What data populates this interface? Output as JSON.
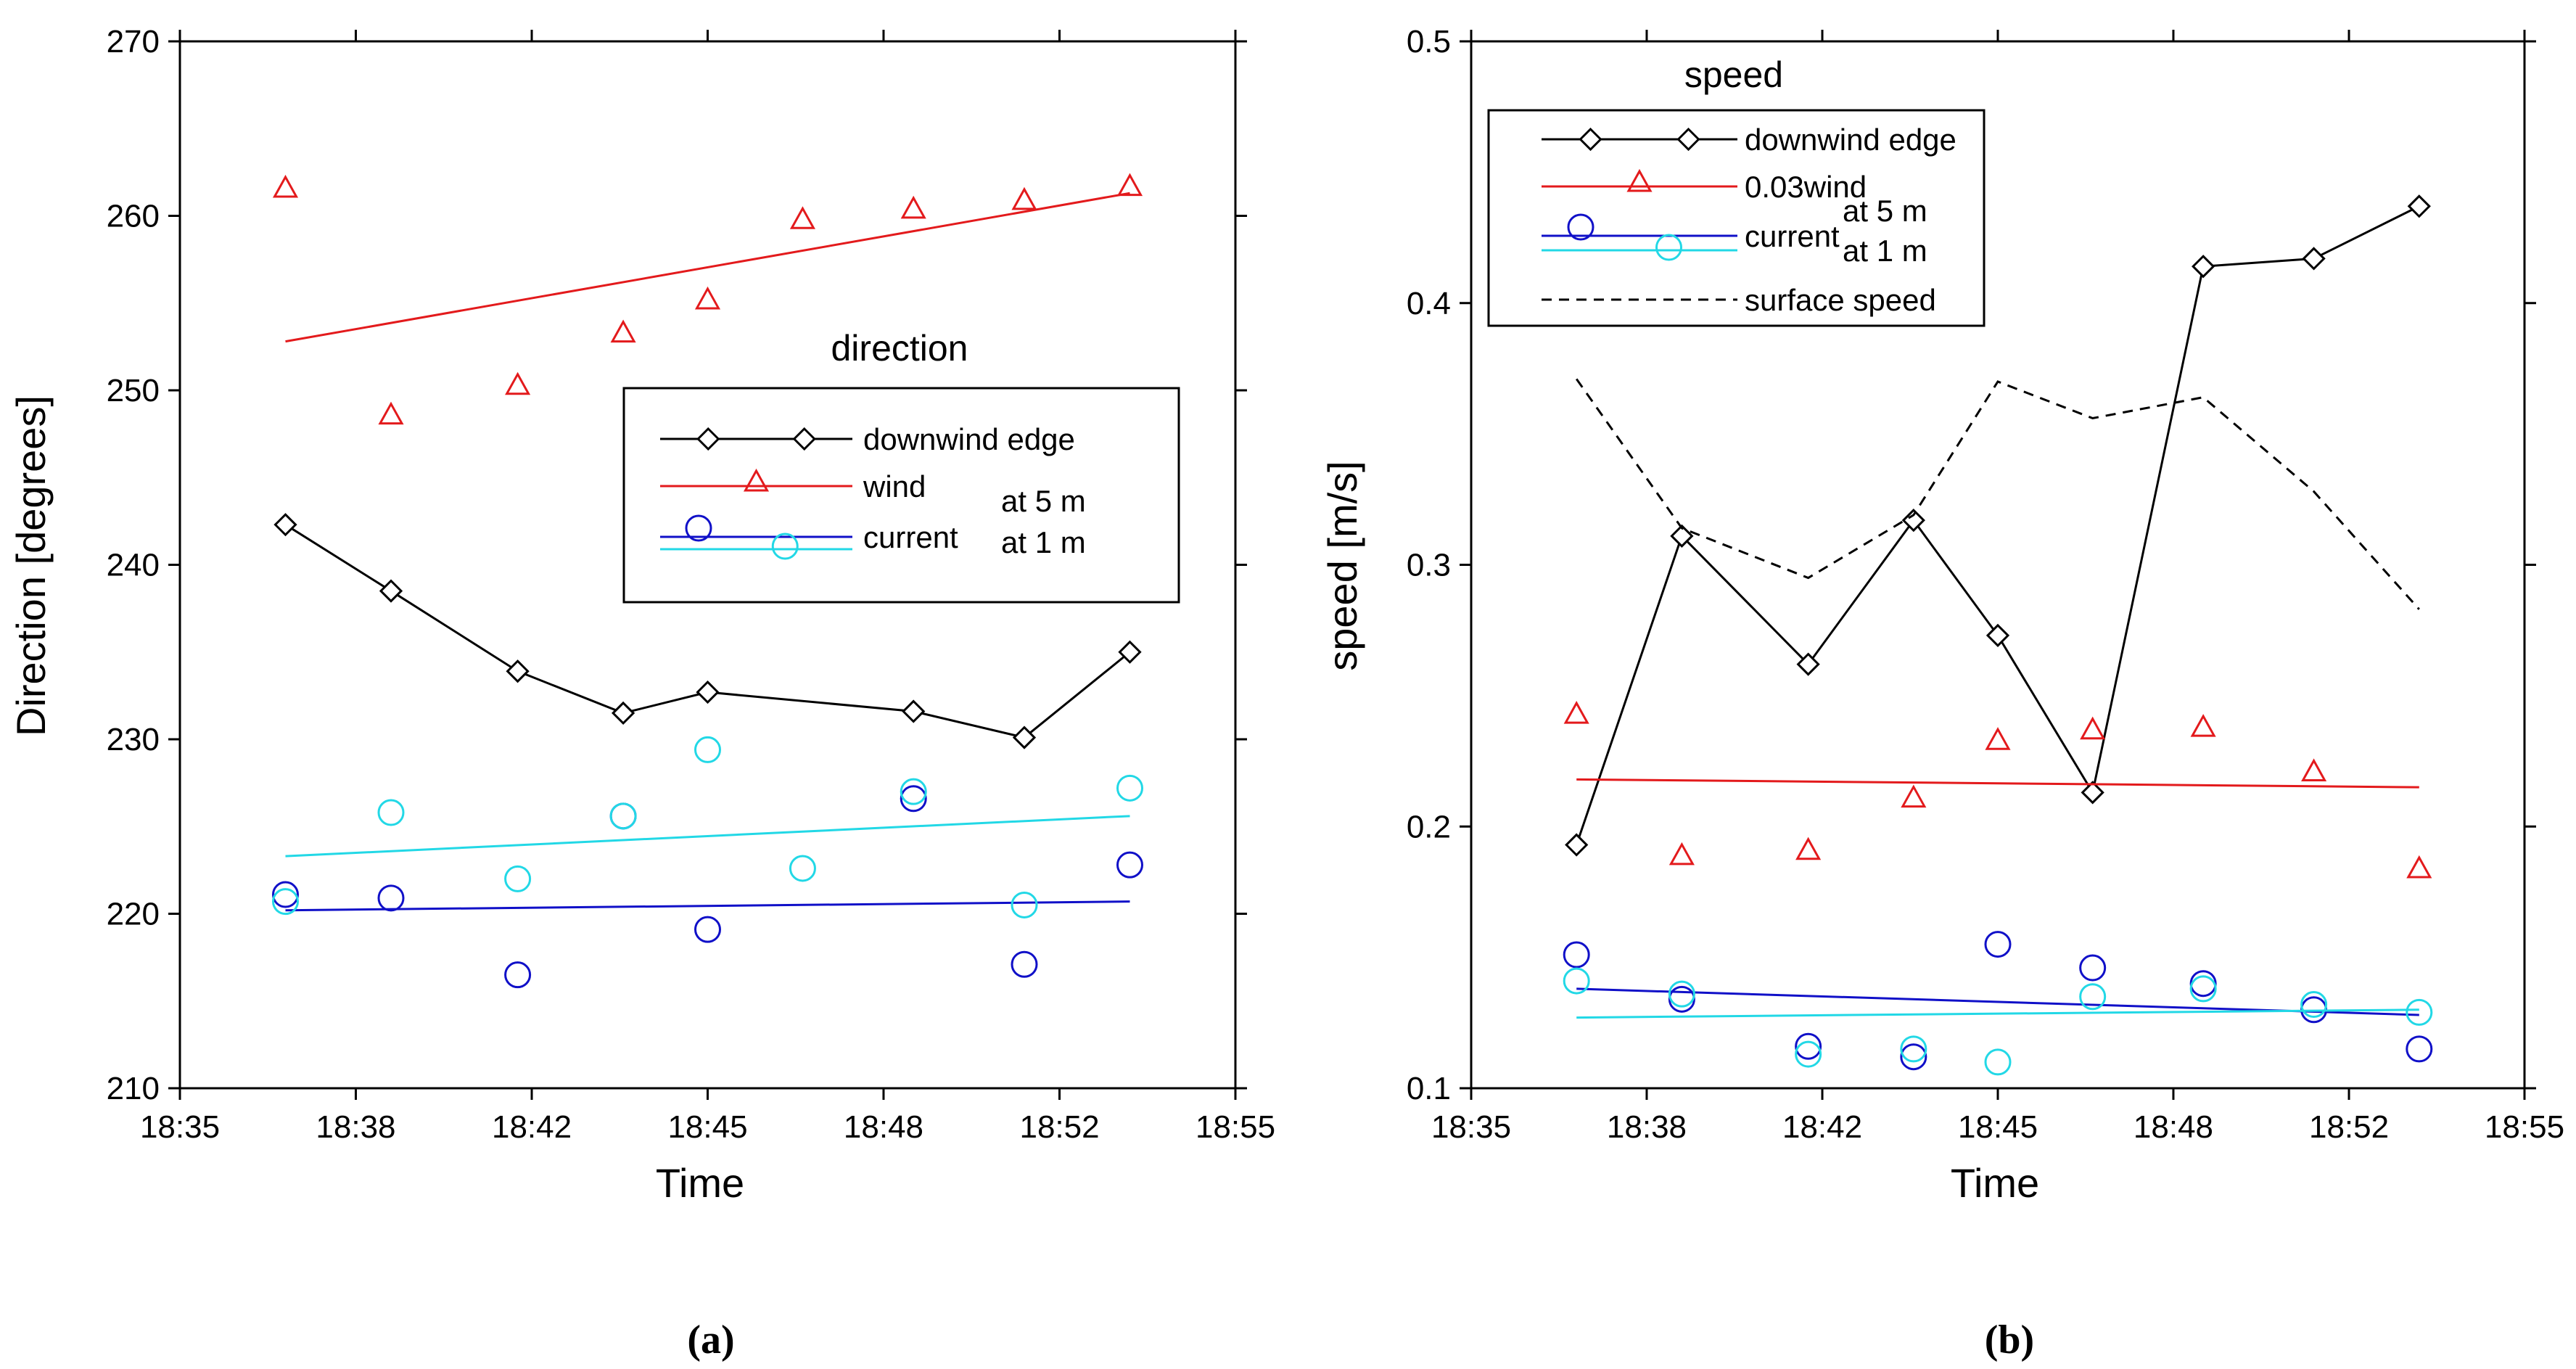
{
  "chart_data": [
    {
      "type": "scatter",
      "panel_label": "(a)",
      "title": "direction",
      "xlabel": "Time",
      "ylabel": "Direction [degrees]",
      "xlim": [
        35,
        55
      ],
      "ylim": [
        210,
        270
      ],
      "xticks": [
        35,
        38.333,
        41.667,
        45,
        48.333,
        51.667,
        55
      ],
      "xtick_labels": [
        "18:35",
        "18:38",
        "18:42",
        "18:45",
        "18:48",
        "18:52",
        "18:55"
      ],
      "yticks": [
        210,
        220,
        230,
        240,
        250,
        260,
        270
      ],
      "ytick_labels": [
        "210",
        "220",
        "230",
        "240",
        "250",
        "260",
        "270"
      ],
      "legend_position": "middle-right",
      "legend": {
        "entries": [
          "downwind edge",
          "wind",
          "current"
        ],
        "notes": [
          "at 5 m",
          "at 1 m"
        ]
      },
      "series": [
        {
          "name": "downwind edge",
          "kind": "line-marker",
          "marker": "diamond",
          "color": "#000000",
          "x": [
            37.0,
            39.0,
            41.4,
            43.4,
            45.0,
            48.9,
            51.0,
            53.0
          ],
          "y": [
            242.3,
            238.5,
            233.9,
            231.5,
            232.7,
            231.6,
            230.1,
            235.0
          ]
        },
        {
          "name": "wind",
          "kind": "marker",
          "marker": "triangle",
          "color": "#e31a1c",
          "x": [
            37.0,
            39.0,
            41.4,
            43.4,
            45.0,
            46.8,
            48.9,
            51.0,
            53.0
          ],
          "y": [
            261.6,
            248.6,
            250.3,
            253.3,
            255.2,
            259.8,
            260.4,
            260.9,
            261.7
          ]
        },
        {
          "name": "wind trend",
          "kind": "line",
          "color": "#e31a1c",
          "x": [
            37.0,
            53.0
          ],
          "y": [
            252.8,
            261.3
          ]
        },
        {
          "name": "current at 5 m",
          "kind": "marker",
          "marker": "circle",
          "color": "#1010c8",
          "x": [
            37.0,
            39.0,
            41.4,
            43.4,
            45.0,
            48.9,
            51.0,
            53.0
          ],
          "y": [
            221.1,
            220.9,
            216.5,
            225.6,
            219.1,
            226.6,
            217.1,
            222.8
          ]
        },
        {
          "name": "current at 5 m trend",
          "kind": "line",
          "color": "#1010c8",
          "x": [
            37.0,
            53.0
          ],
          "y": [
            220.2,
            220.7
          ]
        },
        {
          "name": "current at 1 m",
          "kind": "marker",
          "marker": "circle",
          "color": "#22d8e6",
          "x": [
            37.0,
            39.0,
            41.4,
            43.4,
            45.0,
            46.8,
            48.9,
            51.0,
            53.0
          ],
          "y": [
            220.7,
            225.8,
            222.0,
            225.6,
            229.4,
            222.6,
            227.0,
            220.5,
            227.2
          ]
        },
        {
          "name": "current at 1 m trend",
          "kind": "line",
          "color": "#22d8e6",
          "x": [
            37.0,
            53.0
          ],
          "y": [
            223.3,
            225.6
          ]
        }
      ]
    },
    {
      "type": "scatter",
      "panel_label": "(b)",
      "title": "speed",
      "xlabel": "Time",
      "ylabel": "speed [m/s]",
      "xlim": [
        35,
        55
      ],
      "ylim": [
        0.1,
        0.5
      ],
      "xticks": [
        35,
        38.333,
        41.667,
        45,
        48.333,
        51.667,
        55
      ],
      "xtick_labels": [
        "18:35",
        "18:38",
        "18:42",
        "18:45",
        "18:48",
        "18:52",
        "18:55"
      ],
      "yticks": [
        0.1,
        0.2,
        0.3,
        0.4,
        0.5
      ],
      "ytick_labels": [
        "0.1",
        "0.2",
        "0.3",
        "0.4",
        "0.5"
      ],
      "legend_position": "top-left",
      "legend": {
        "entries": [
          "downwind edge",
          "0.03wind",
          "current",
          "surface speed"
        ],
        "notes": [
          "at 5 m",
          "at 1 m"
        ]
      },
      "series": [
        {
          "name": "downwind edge",
          "kind": "line-marker",
          "marker": "diamond",
          "color": "#000000",
          "x": [
            37.0,
            39.0,
            41.4,
            43.4,
            45.0,
            46.8,
            48.9,
            51.0,
            53.0
          ],
          "y": [
            0.193,
            0.311,
            0.262,
            0.317,
            0.273,
            0.213,
            0.414,
            0.417,
            0.437
          ]
        },
        {
          "name": "surface speed",
          "kind": "dashed-line",
          "color": "#000000",
          "x": [
            37.0,
            39.0,
            41.4,
            43.4,
            45.0,
            46.8,
            48.9,
            51.0,
            53.0
          ],
          "y": [
            0.371,
            0.314,
            0.295,
            0.319,
            0.37,
            0.356,
            0.364,
            0.328,
            0.283
          ]
        },
        {
          "name": "0.03wind",
          "kind": "marker",
          "marker": "triangle",
          "color": "#e31a1c",
          "x": [
            37.0,
            39.0,
            41.4,
            43.4,
            45.0,
            46.8,
            48.9,
            51.0,
            53.0
          ],
          "y": [
            0.243,
            0.189,
            0.191,
            0.211,
            0.233,
            0.237,
            0.238,
            0.221,
            0.184
          ]
        },
        {
          "name": "0.03wind trend",
          "kind": "line",
          "color": "#e31a1c",
          "x": [
            37.0,
            53.0
          ],
          "y": [
            0.218,
            0.215
          ]
        },
        {
          "name": "current at 5 m",
          "kind": "marker",
          "marker": "circle",
          "color": "#1010c8",
          "x": [
            37.0,
            39.0,
            41.4,
            43.4,
            45.0,
            46.8,
            48.9,
            51.0,
            53.0
          ],
          "y": [
            0.151,
            0.134,
            0.116,
            0.112,
            0.155,
            0.146,
            0.14,
            0.13,
            0.115
          ]
        },
        {
          "name": "current at 5 m trend",
          "kind": "line",
          "color": "#1010c8",
          "x": [
            37.0,
            53.0
          ],
          "y": [
            0.138,
            0.128
          ]
        },
        {
          "name": "current at 1 m",
          "kind": "marker",
          "marker": "circle",
          "color": "#22d8e6",
          "x": [
            37.0,
            39.0,
            41.4,
            43.4,
            45.0,
            46.8,
            48.9,
            51.0,
            53.0
          ],
          "y": [
            0.141,
            0.136,
            0.113,
            0.115,
            0.11,
            0.135,
            0.138,
            0.132,
            0.129
          ]
        },
        {
          "name": "current at 1 m trend",
          "kind": "line",
          "color": "#22d8e6",
          "x": [
            37.0,
            53.0
          ],
          "y": [
            0.127,
            0.13
          ]
        }
      ]
    }
  ]
}
